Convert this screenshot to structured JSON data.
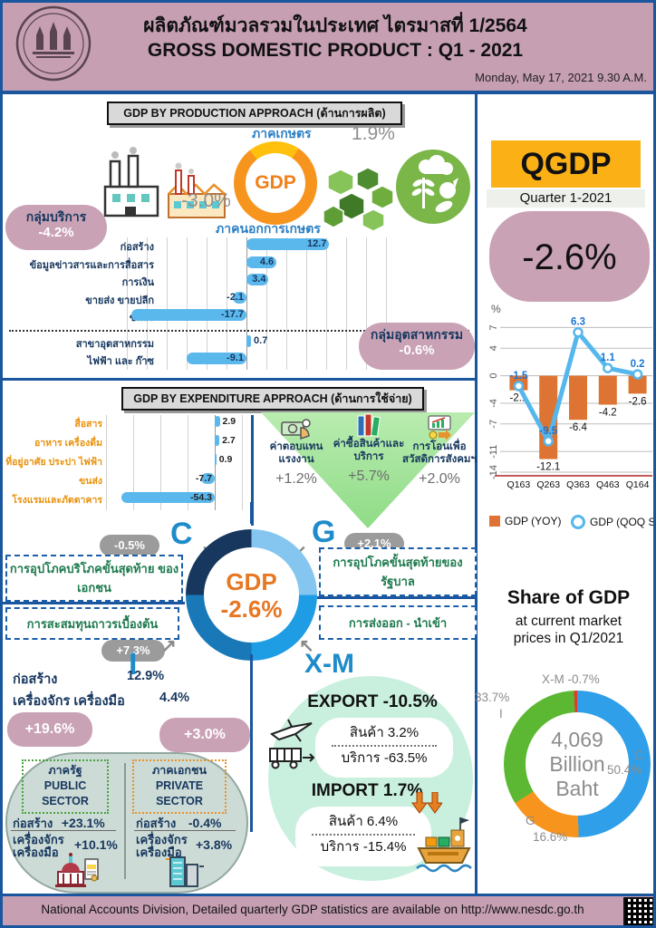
{
  "header": {
    "title_th": "ผลิตภัณฑ์มวลรวมในประเทศ ไตรมาสที่ 1/2564",
    "title_en": "GROSS DOMESTIC PRODUCT : Q1 - 2021",
    "date": "Monday, May 17, 2021 9.30 A.M."
  },
  "colors": {
    "band_pink": "#c69fb3",
    "blob_pink": "#c9a2b5",
    "line_blue": "#1a569e",
    "bar_blue": "#5bb8ed",
    "navy": "#17375e",
    "ring_orange": "#f7941d",
    "ring_yellow": "#ffc10e",
    "qgdp_amber": "#fbb016",
    "yoy_orange": "#dd7433",
    "qoq_blue": "#56b7ec",
    "mint": "#c9f0de",
    "triangle_green": "#9fe099"
  },
  "production": {
    "section_title": "GDP BY PRODUCTION APPROACH (ด้านการผลิต)",
    "gdp_label": "GDP",
    "agriculture_label": "ภาคเกษตร",
    "agriculture_value": "1.9%",
    "non_agriculture_label": "ภาคนอกการเกษตร",
    "non_agriculture_value": "-3.0%",
    "services_badge": {
      "label": "กลุ่มบริการ",
      "value": "-4.2%"
    },
    "industry_badge": {
      "label": "กลุ่มอุตสาหกรรม",
      "value": "-0.6%"
    }
  },
  "expenditure": {
    "section_title": "GDP BY EXPENDITURE APPROACH (ด้านการใช้จ่าย)",
    "gov_items": [
      {
        "label": "ค่าตอบแทนแรงงาน",
        "value": "+1.2%"
      },
      {
        "label": "ค่าซื้อสินค้าและบริการ",
        "value": "+5.7%"
      },
      {
        "label": "การโอนเพื่อสวัสดิการสังคมฯ",
        "value": "+2.0%"
      }
    ],
    "gdp_center": {
      "label": "GDP",
      "value": "-2.6%"
    },
    "components": {
      "c": {
        "letter": "C",
        "badge": "-0.5%",
        "desc": "การอุปโภคบริโภคขั้นสุดท้าย ของเอกชน"
      },
      "g": {
        "letter": "G",
        "badge": "+2.1%",
        "desc": "การอุปโภคขั้นสุดท้ายของ รัฐบาล"
      },
      "i": {
        "letter": "I",
        "badge": "+7.3%",
        "desc": "การสะสมทุนถาวรเบื้องต้น"
      },
      "xm": {
        "letter": "X-M",
        "desc": "การส่งออก - นำเข้า"
      }
    },
    "investment": {
      "rows": [
        {
          "label": "ก่อสร้าง",
          "value": "12.9%"
        },
        {
          "label": "เครื่องจักร เครื่องมือ",
          "value": "4.4%"
        }
      ],
      "public": {
        "badge": "+19.6%",
        "title_th": "ภาครัฐ",
        "title_en1": "PUBLIC",
        "title_en2": "SECTOR",
        "construction_label": "ก่อสร้าง",
        "construction": "+23.1%",
        "machinery_label1": "เครื่องจักร",
        "machinery_label2": "เครื่องมือ",
        "machinery": "+10.1%"
      },
      "private": {
        "badge": "+3.0%",
        "title_th": "ภาคเอกชน",
        "title_en1": "PRIVATE",
        "title_en2": "SECTOR",
        "construction_label": "ก่อสร้าง",
        "construction": "-0.4%",
        "machinery_label1": "เครื่องจักร",
        "machinery_label2": "เครื่องมือ",
        "machinery": "+3.8%"
      }
    },
    "trade": {
      "export_label": "EXPORT",
      "export_value": "-10.5%",
      "export_goods_label": "สินค้า",
      "export_goods_value": "3.2%",
      "export_services_label": "บริการ",
      "export_services_value": "-63.5%",
      "import_label": "IMPORT",
      "import_value": "1.7%",
      "import_goods_label": "สินค้า",
      "import_goods_value": "6.4%",
      "import_services_label": "บริการ",
      "import_services_value": "-15.4%"
    }
  },
  "qgdp_panel": {
    "title": "QGDP",
    "subtitle": "Quarter 1-2021",
    "headline": "-2.6%"
  },
  "footer": {
    "text": "National Accounts Division, Detailed quarterly GDP statistics are available on http://www.nesdc.go.th"
  },
  "chart_data": [
    {
      "id": "production_sectors",
      "type": "bar",
      "orientation": "horizontal",
      "categories": [
        "ก่อสร้าง",
        "ข้อมูลข่าวสารและการสื่อสาร",
        "การเงิน",
        "ขายส่ง ขายปลีก",
        "ขนส่ง",
        "สาขาอุตสาหกรรม",
        "ไฟฟ้า และ ก๊าซ"
      ],
      "values": [
        12.7,
        4.6,
        3.4,
        -2.1,
        -17.7,
        0.7,
        -9.1
      ],
      "divider_after_index": 4,
      "bar_color": "#5bb8ed",
      "grid": true
    },
    {
      "id": "expenditure_items",
      "type": "bar",
      "orientation": "horizontal",
      "categories": [
        "สื่อสาร",
        "อาหาร เครื่องดื่ม",
        "ที่อยู่อาศัย ประปา ไฟฟ้า",
        "ขนส่ง",
        "โรงแรมและภัตตาคาร"
      ],
      "values": [
        2.9,
        2.7,
        0.9,
        -7.7,
        -54.3
      ],
      "bar_color": "#5bb8ed",
      "grid": true
    },
    {
      "id": "qgdp_quarterly",
      "type": "bar+line",
      "categories": [
        "Q163",
        "Q263",
        "Q363",
        "Q463",
        "Q164"
      ],
      "series": [
        {
          "name": "GDP (YOY)",
          "type": "bar",
          "color": "#dd7433",
          "values": [
            -2.1,
            -12.1,
            -6.4,
            -4.2,
            -2.6
          ]
        },
        {
          "name": "GDP (QOQ SA)",
          "type": "line",
          "color": "#56b7ec",
          "values": [
            -1.5,
            -9.5,
            6.3,
            1.1,
            0.2
          ]
        }
      ],
      "ylabel": "%",
      "yticks": [
        7,
        4,
        0,
        -4,
        -7,
        -11,
        -14
      ],
      "ylim": [
        -14,
        8
      ],
      "grid": true,
      "legend_position": "bottom"
    },
    {
      "id": "share_of_gdp",
      "type": "pie",
      "title": "Share of GDP",
      "subtitle1": "at current market",
      "subtitle2": "prices in Q1/2021",
      "center_text": [
        "4,069",
        "Billion",
        "Baht"
      ],
      "slices": [
        {
          "name": "C",
          "value": 50.4,
          "color": "#2e9fe8"
        },
        {
          "name": "G",
          "value": 16.6,
          "color": "#f7941d"
        },
        {
          "name": "I",
          "value": 33.7,
          "color": "#5cb832"
        },
        {
          "name": "X-M",
          "value": -0.7,
          "color": "#e23b2e"
        }
      ]
    }
  ]
}
